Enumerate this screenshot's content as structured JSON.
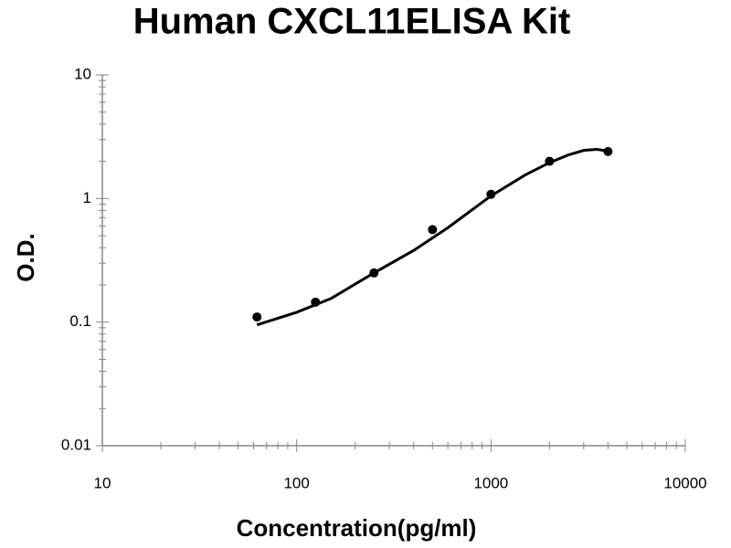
{
  "chart_data": {
    "type": "scatter",
    "title": "Human CXCL11ELISA Kit",
    "x_label": "Concentration(pg/ml)",
    "y_label": "O.D.",
    "x": [
      62.5,
      125,
      250,
      500,
      1000,
      2000,
      4000
    ],
    "values": [
      0.11,
      0.145,
      0.25,
      0.56,
      1.08,
      2.0,
      2.4
    ],
    "color": "#000000",
    "fit_curve": {
      "x": [
        62.5,
        100,
        150,
        250,
        400,
        600,
        1000,
        1500,
        2000,
        2500,
        3000,
        3500,
        4000
      ],
      "values": [
        0.095,
        0.12,
        0.155,
        0.25,
        0.38,
        0.58,
        1.05,
        1.55,
        1.95,
        2.25,
        2.45,
        2.5,
        2.42
      ]
    },
    "xlim": [
      10,
      10000
    ],
    "xticks": [
      10,
      100,
      1000,
      10000
    ],
    "x_log": true,
    "ylim": [
      0.01,
      10
    ],
    "yticks": [
      0.01,
      0.1,
      1,
      10
    ],
    "y_log": true,
    "grid": false
  }
}
